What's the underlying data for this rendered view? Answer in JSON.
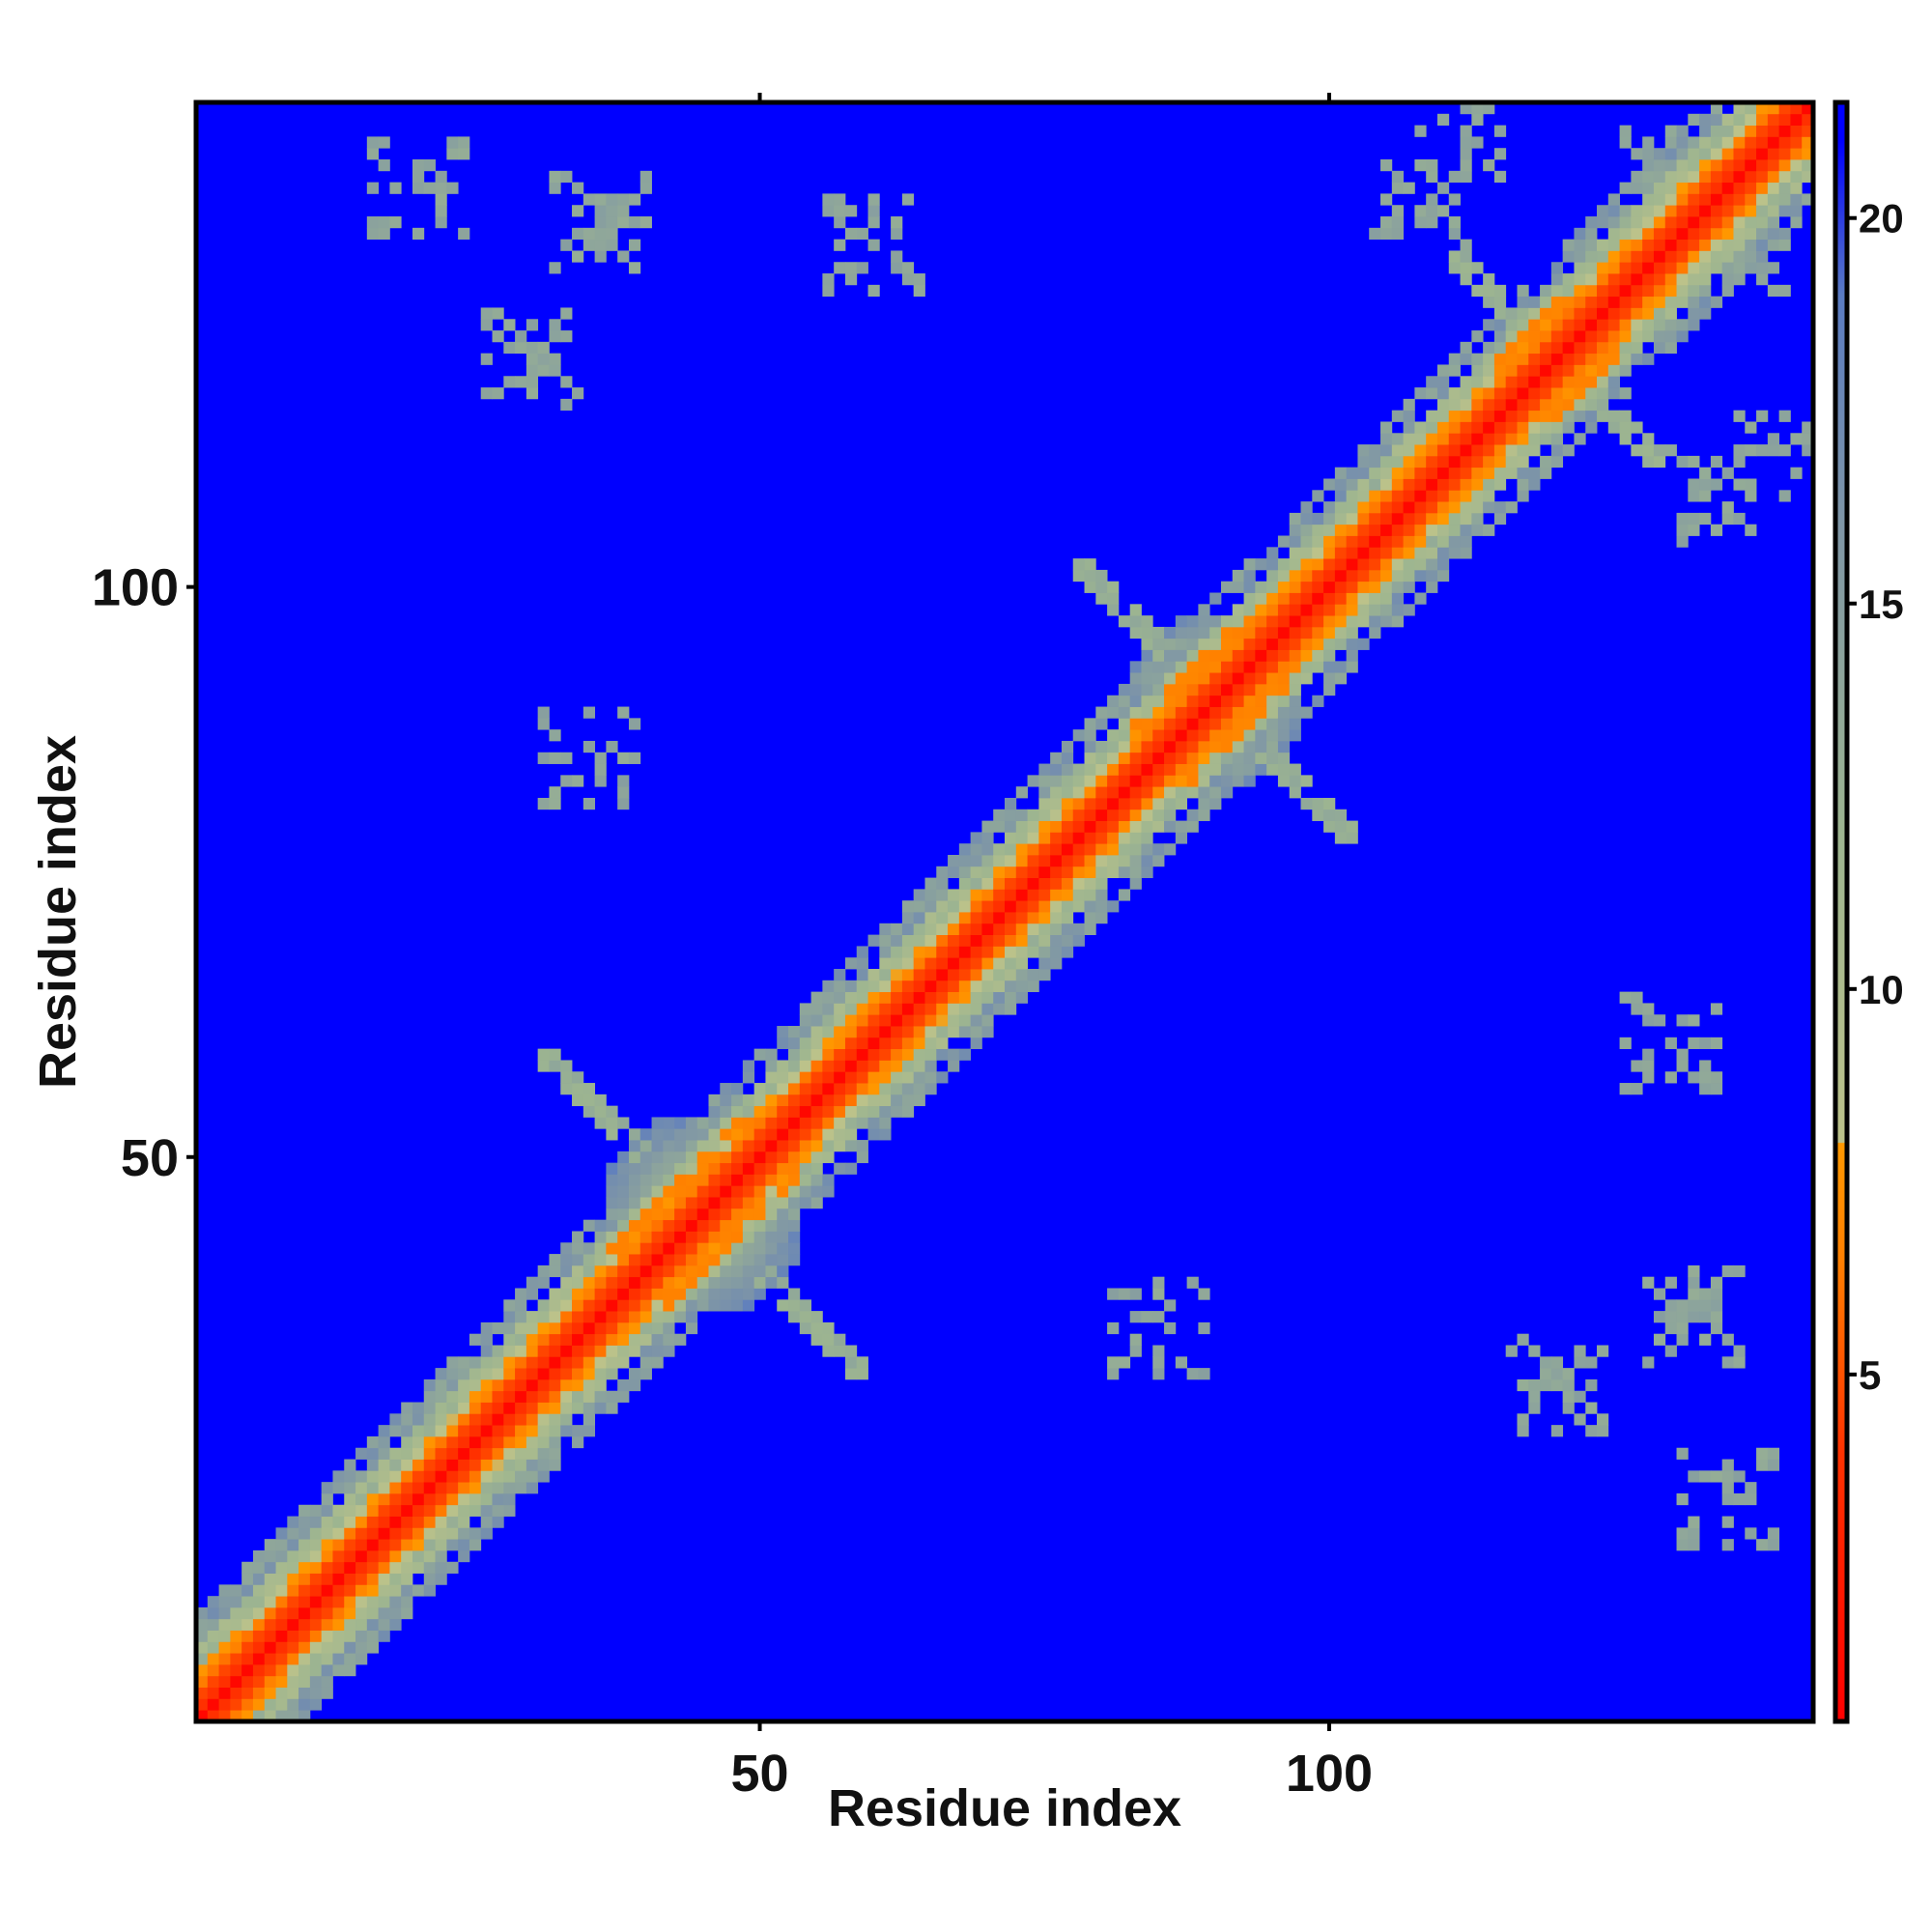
{
  "chart_data": {
    "type": "heatmap",
    "title": "",
    "xlabel": "Residue index",
    "ylabel": "Residue index",
    "xlim": [
      1,
      142
    ],
    "ylim": [
      1,
      142
    ],
    "x_ticks": [
      50,
      100
    ],
    "y_ticks": [
      50,
      100
    ],
    "colorbar": {
      "range": [
        0.5,
        21.5
      ],
      "ticks": [
        5,
        10,
        15,
        20
      ],
      "stops": [
        {
          "value": 0.5,
          "color": "#ff0000"
        },
        {
          "value": 4.0,
          "color": "#ff3300"
        },
        {
          "value": 6.5,
          "color": "#ff8000"
        },
        {
          "value": 8.0,
          "color": "#ff9900"
        },
        {
          "value": 8.01,
          "color": "#bcc28a"
        },
        {
          "value": 12.0,
          "color": "#9db590"
        },
        {
          "value": 16.0,
          "color": "#7f96a6"
        },
        {
          "value": 19.0,
          "color": "#5a7bc2"
        },
        {
          "value": 21.0,
          "color": "#0000ff"
        },
        {
          "value": 21.5,
          "color": "#0000ff"
        }
      ]
    },
    "background_value": 21,
    "regions": [
      {
        "name": "diagonal",
        "description": "residue i vs i, distance 0 to 8 along main diagonal"
      },
      {
        "name": "cluster-1",
        "center": [
          45,
          45
        ],
        "radius": 9
      },
      {
        "name": "cluster-2",
        "center": [
          90,
          90
        ],
        "radius": 8
      },
      {
        "name": "cluster-3",
        "center": [
          120,
          120
        ],
        "radius": 6
      },
      {
        "name": "off-diagonal-contacts",
        "points": [
          [
            36,
            132
          ],
          [
            130,
            136
          ],
          [
            112,
            140
          ],
          [
            134,
            108
          ],
          [
            20,
            135
          ],
          [
            85,
            35
          ],
          [
            130,
            60
          ],
          [
            120,
            30
          ]
        ]
      }
    ]
  }
}
